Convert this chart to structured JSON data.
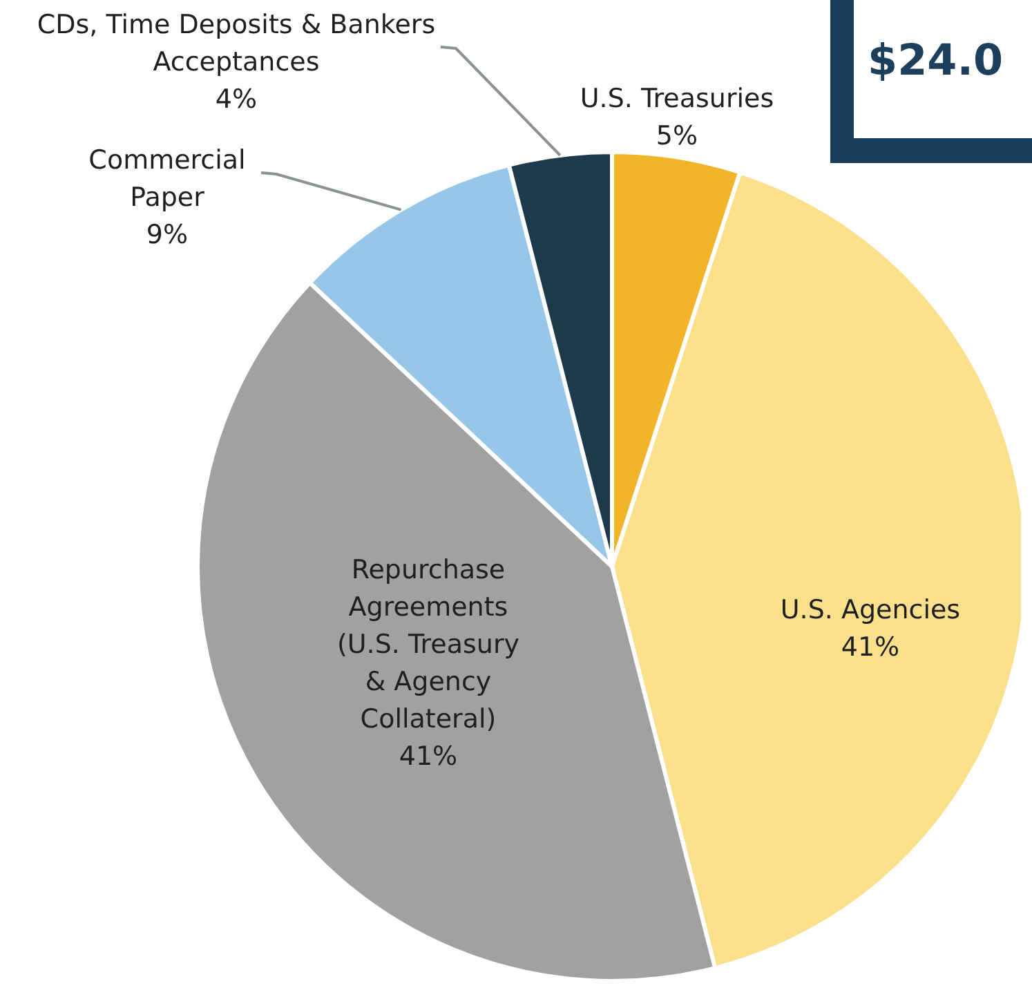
{
  "chart_data": {
    "type": "pie",
    "categories": [
      "U.S. Treasuries",
      "U.S. Agencies",
      "Repurchase Agreements (U.S. Treasury & Agency Collateral)",
      "Commercial Paper",
      "CDs, Time Deposits & Bankers Acceptances"
    ],
    "values": [
      5,
      41,
      41,
      9,
      4
    ],
    "value_labels": [
      "5%",
      "41%",
      "41%",
      "9%",
      "4%"
    ],
    "colors": [
      "#f2b52a",
      "#fbe08c",
      "#9fa29e",
      "#96c6e8",
      "#1d3a4b"
    ],
    "annotations": [
      "$24.0"
    ]
  }
}
